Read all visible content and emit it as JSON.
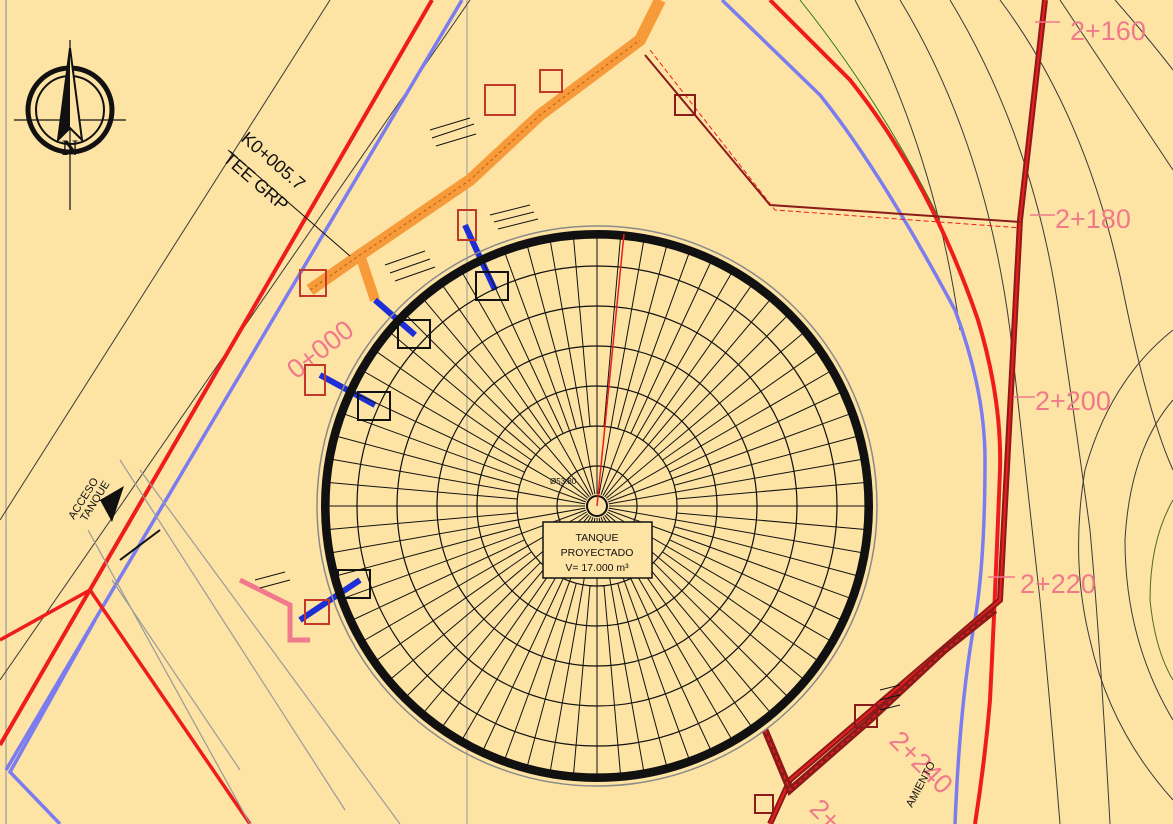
{
  "colors": {
    "background": "#fde4a4",
    "boundary_red": "#ee1c1c",
    "boundary_blue": "#7b7cf0",
    "pipe_orange": "#f79a3a",
    "pipe_dark_red": "#8b1a1a",
    "station_pink": "#f07a8c",
    "valve_blue": "#1f2fd6",
    "contour": "#3a3a3a"
  },
  "stations": [
    {
      "label": "2+160"
    },
    {
      "label": "2+180"
    },
    {
      "label": "2+200"
    },
    {
      "label": "2+220"
    },
    {
      "label": "2+240"
    },
    {
      "label": "2+"
    }
  ],
  "annotations": {
    "tee_station": "K0+005.7",
    "tee_type": "TEE GRP",
    "pipe_station": "0+000",
    "access_line1": "ACCESO",
    "access_line2": "TANQUE",
    "center_dim": "Ø53.80",
    "bottom_partial": "AMIENTO"
  },
  "tank": {
    "line1": "TANQUE",
    "line2": "PROYECTADO",
    "volume": "V= 17.000 m³"
  },
  "north_arrow": {
    "letter": "N",
    "icon": "north-arrow-icon"
  }
}
